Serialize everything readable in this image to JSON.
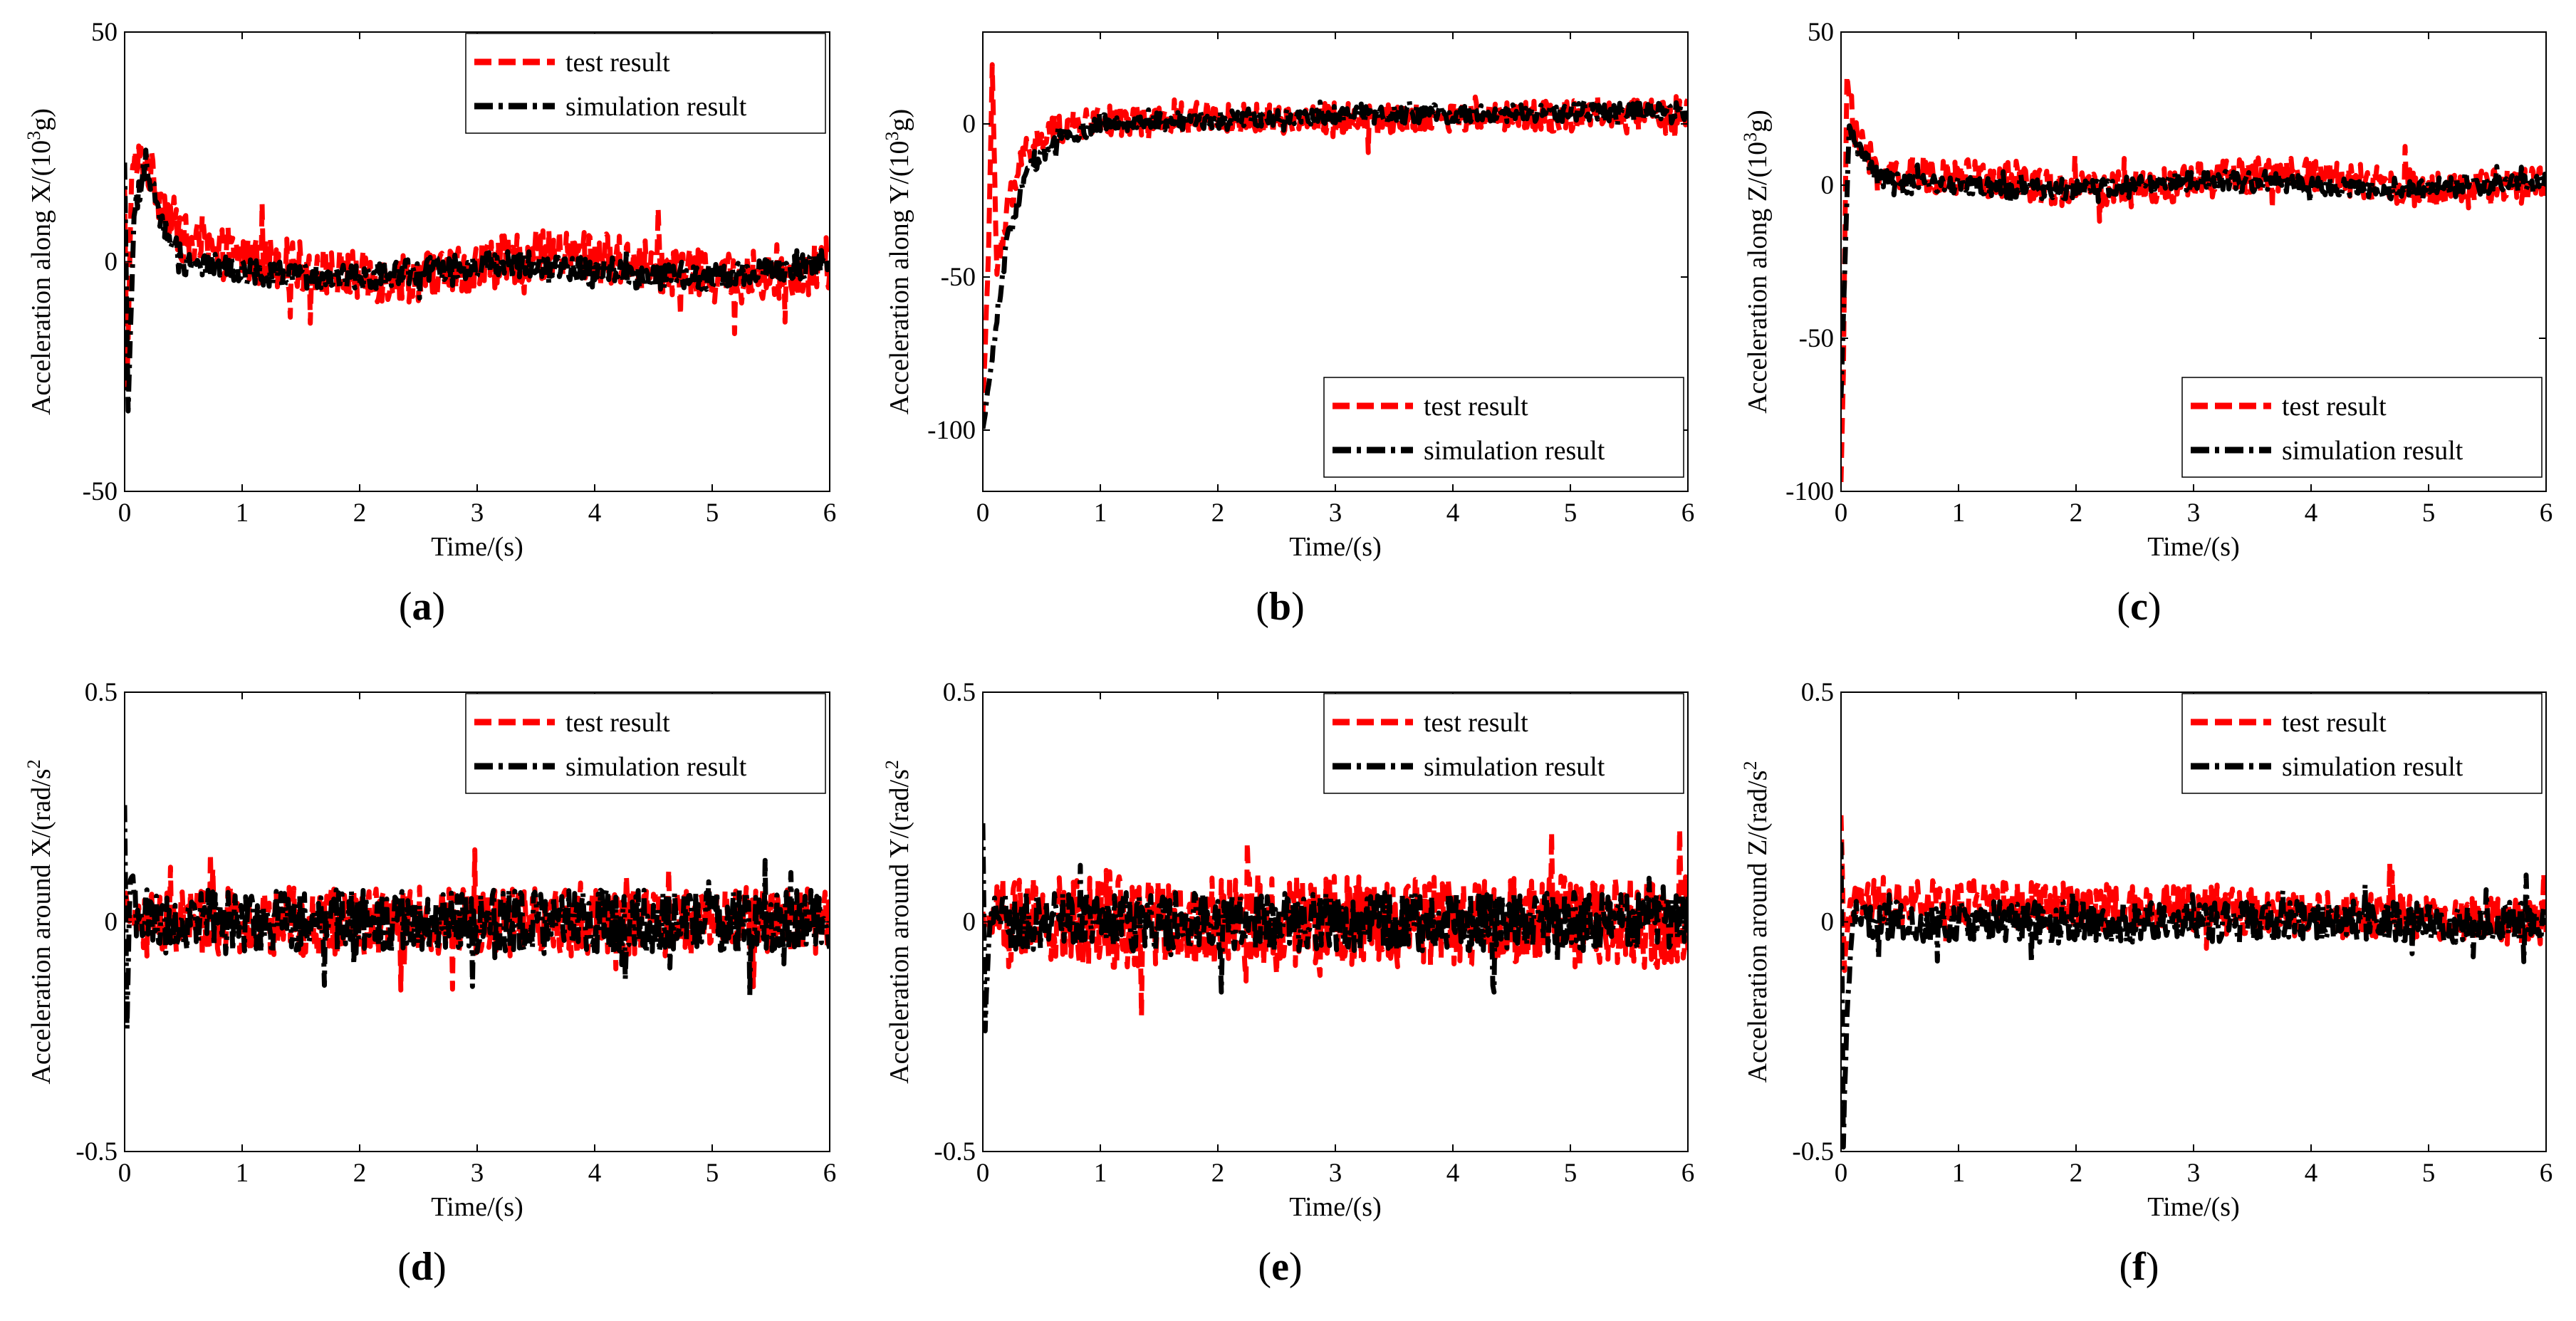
{
  "figure": {
    "test_color": "#ff0000",
    "sim_color": "#000000",
    "legend": {
      "test": "test result",
      "sim": "simulation result"
    }
  },
  "chart_data": [
    {
      "panel": "a",
      "type": "line",
      "caption": {
        "open": "(",
        "letter": "a",
        "close": ")"
      },
      "xlabel": "Time/(s)",
      "ylabel_prefix": "Acceleration along X/(10",
      "ylabel_sup": "3",
      "ylabel_suffix": "g)",
      "xlim": [
        0,
        6
      ],
      "ylim": [
        -50,
        50
      ],
      "xticks": [
        0,
        1,
        2,
        3,
        4,
        5,
        6
      ],
      "xtick_labels": [
        "0",
        "1",
        "2",
        "3",
        "4",
        "5",
        "6"
      ],
      "yticks": [
        -50,
        0,
        50
      ],
      "ytick_labels": [
        "-50",
        "0",
        "50"
      ],
      "legend_position": "top-right",
      "series": [
        {
          "name": "test result",
          "style": "dashed",
          "settle": -1,
          "amp": 2.5,
          "noise": 5.5,
          "transient": [
            [
              0,
              15
            ],
            [
              0.02,
              -28
            ],
            [
              0.06,
              20
            ],
            [
              0.18,
              22
            ],
            [
              0.3,
              14
            ],
            [
              0.5,
              5
            ],
            [
              0.8,
              1
            ]
          ]
        },
        {
          "name": "simulation result",
          "style": "dash-dot",
          "settle": -2,
          "amp": 1.5,
          "noise": 2.8,
          "transient": [
            [
              0,
              20
            ],
            [
              0.03,
              -32
            ],
            [
              0.08,
              10
            ],
            [
              0.18,
              22
            ],
            [
              0.3,
              10
            ],
            [
              0.5,
              0
            ],
            [
              0.8,
              -1
            ]
          ]
        }
      ]
    },
    {
      "panel": "b",
      "type": "line",
      "caption": {
        "open": "(",
        "letter": "b",
        "close": ")"
      },
      "xlabel": "Time/(s)",
      "ylabel_prefix": "Acceleration along Y/(10",
      "ylabel_sup": "3",
      "ylabel_suffix": "g)",
      "xlim": [
        0,
        6
      ],
      "ylim": [
        -120,
        30
      ],
      "xticks": [
        0,
        1,
        2,
        3,
        4,
        5,
        6
      ],
      "xtick_labels": [
        "0",
        "1",
        "2",
        "3",
        "4",
        "5",
        "6"
      ],
      "yticks": [
        -100,
        -50,
        0
      ],
      "ytick_labels": [
        "-100",
        "-50",
        "0"
      ],
      "legend_position": "bottom-right",
      "series": [
        {
          "name": "test result",
          "style": "dashed",
          "settle": 2,
          "amp": 2.5,
          "noise": 5.0,
          "transient": [
            [
              0,
              -95
            ],
            [
              0.05,
              -40
            ],
            [
              0.08,
              18
            ],
            [
              0.12,
              -50
            ],
            [
              0.2,
              -30
            ],
            [
              0.35,
              -10
            ],
            [
              0.6,
              -2
            ],
            [
              1.0,
              1
            ],
            [
              3,
              2
            ],
            [
              6,
              3
            ]
          ]
        },
        {
          "name": "simulation result",
          "style": "dash-dot",
          "settle": 3,
          "amp": 1.5,
          "noise": 3.0,
          "transient": [
            [
              0,
              -100
            ],
            [
              0.1,
              -70
            ],
            [
              0.2,
              -40
            ],
            [
              0.35,
              -18
            ],
            [
              0.6,
              -5
            ],
            [
              1.0,
              0
            ],
            [
              3,
              3
            ],
            [
              6,
              4
            ]
          ]
        }
      ]
    },
    {
      "panel": "c",
      "type": "line",
      "caption": {
        "open": "(",
        "letter": "c",
        "close": ")"
      },
      "xlabel": "Time/(s)",
      "ylabel_prefix": "Acceleration along Z/(10",
      "ylabel_sup": "3",
      "ylabel_suffix": "g)",
      "xlim": [
        0,
        6
      ],
      "ylim": [
        -100,
        50
      ],
      "xticks": [
        0,
        1,
        2,
        3,
        4,
        5,
        6
      ],
      "xtick_labels": [
        "0",
        "1",
        "2",
        "3",
        "4",
        "5",
        "6"
      ],
      "yticks": [
        -100,
        -50,
        0,
        50
      ],
      "ytick_labels": [
        "-100",
        "-50",
        "0",
        "50"
      ],
      "legend_position": "bottom-right",
      "series": [
        {
          "name": "test result",
          "style": "dashed",
          "settle": 1,
          "amp": 2.5,
          "noise": 6.0,
          "transient": [
            [
              0,
              -98
            ],
            [
              0.02,
              -60
            ],
            [
              0.05,
              35
            ],
            [
              0.12,
              15
            ],
            [
              0.3,
              5
            ],
            [
              0.6,
              2
            ]
          ]
        },
        {
          "name": "simulation result",
          "style": "dash-dot",
          "settle": 0,
          "amp": 1.5,
          "noise": 3.0,
          "transient": [
            [
              0,
              -70
            ],
            [
              0.03,
              -30
            ],
            [
              0.07,
              20
            ],
            [
              0.15,
              12
            ],
            [
              0.3,
              3
            ],
            [
              0.6,
              0
            ]
          ]
        }
      ]
    },
    {
      "panel": "d",
      "type": "line",
      "caption": {
        "open": "(",
        "letter": "d",
        "close": ")"
      },
      "xlabel": "Time/(s)",
      "ylabel_prefix": "Acceleration around X/(rad/s",
      "ylabel_sup": "2",
      "ylabel_suffix": "",
      "xlim": [
        0,
        6
      ],
      "ylim": [
        -0.5,
        0.5
      ],
      "xticks": [
        0,
        1,
        2,
        3,
        4,
        5,
        6
      ],
      "xtick_labels": [
        "0",
        "1",
        "2",
        "3",
        "4",
        "5",
        "6"
      ],
      "yticks": [
        -0.5,
        0,
        0.5
      ],
      "ytick_labels": [
        "-0.5",
        "0",
        "0.5"
      ],
      "legend_position": "top-right",
      "series": [
        {
          "name": "test result",
          "style": "dashed",
          "settle": 0,
          "amp": 0.02,
          "noise": 0.075,
          "transient": [
            [
              0,
              0.05
            ],
            [
              0.05,
              0
            ],
            [
              6,
              0
            ]
          ]
        },
        {
          "name": "simulation result",
          "style": "dash-dot",
          "settle": 0,
          "amp": 0.015,
          "noise": 0.07,
          "transient": [
            [
              0,
              0.24
            ],
            [
              0.02,
              -0.2
            ],
            [
              0.05,
              0.1
            ],
            [
              0.1,
              0
            ],
            [
              6,
              0
            ]
          ]
        }
      ]
    },
    {
      "panel": "e",
      "type": "line",
      "caption": {
        "open": "(",
        "letter": "e",
        "close": ")"
      },
      "xlabel": "Time/(s)",
      "ylabel_prefix": "Acceleration around Y/(rad/s",
      "ylabel_sup": "2",
      "ylabel_suffix": "",
      "xlim": [
        0,
        6
      ],
      "ylim": [
        -0.5,
        0.5
      ],
      "xticks": [
        0,
        1,
        2,
        3,
        4,
        5,
        6
      ],
      "xtick_labels": [
        "0",
        "1",
        "2",
        "3",
        "4",
        "5",
        "6"
      ],
      "yticks": [
        -0.5,
        0,
        0.5
      ],
      "ytick_labels": [
        "-0.5",
        "0",
        "0.5"
      ],
      "legend_position": "top-right",
      "series": [
        {
          "name": "test result",
          "style": "dashed",
          "settle": 0,
          "amp": 0.02,
          "noise": 0.1,
          "transient": [
            [
              0,
              0
            ],
            [
              6,
              0
            ]
          ]
        },
        {
          "name": "simulation result",
          "style": "dash-dot",
          "settle": 0,
          "amp": 0.015,
          "noise": 0.065,
          "transient": [
            [
              0,
              0.2
            ],
            [
              0.02,
              -0.22
            ],
            [
              0.06,
              0
            ],
            [
              6,
              0
            ]
          ]
        }
      ]
    },
    {
      "panel": "f",
      "type": "line",
      "caption": {
        "open": "(",
        "letter": "f",
        "close": ")"
      },
      "xlabel": "Time/(s)",
      "ylabel_prefix": "Acceleration around Z/(rad/s",
      "ylabel_sup": "2",
      "ylabel_suffix": "",
      "xlim": [
        0,
        6
      ],
      "ylim": [
        -0.5,
        0.5
      ],
      "xticks": [
        0,
        1,
        2,
        3,
        4,
        5,
        6
      ],
      "xtick_labels": [
        "0",
        "1",
        "2",
        "3",
        "4",
        "5",
        "6"
      ],
      "yticks": [
        -0.5,
        0,
        0.5
      ],
      "ytick_labels": [
        "-0.5",
        "0",
        "0.5"
      ],
      "legend_position": "top-right",
      "series": [
        {
          "name": "test result",
          "style": "dashed",
          "settle": 0,
          "amp": 0.015,
          "noise": 0.05,
          "transient": [
            [
              0,
              0.22
            ],
            [
              0.03,
              -0.1
            ],
            [
              0.08,
              0.05
            ],
            [
              6,
              0
            ]
          ]
        },
        {
          "name": "simulation result",
          "style": "dash-dot",
          "settle": 0,
          "amp": 0.012,
          "noise": 0.045,
          "transient": [
            [
              0,
              0.18
            ],
            [
              0.02,
              -0.48
            ],
            [
              0.05,
              -0.2
            ],
            [
              0.1,
              0
            ],
            [
              6,
              0
            ]
          ]
        }
      ]
    }
  ]
}
